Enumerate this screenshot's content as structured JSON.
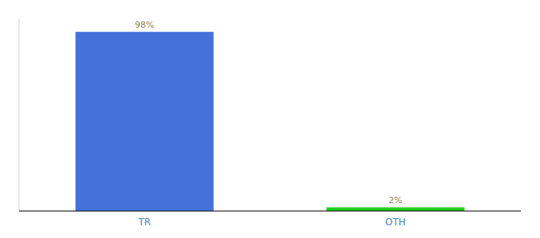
{
  "chart_data": {
    "type": "bar",
    "categories": [
      "TR",
      "OTH"
    ],
    "values": [
      98,
      2
    ],
    "value_labels": [
      "98%",
      "2%"
    ],
    "colors": [
      "#4472db",
      "#22cc22"
    ],
    "ylim": [
      0,
      105
    ],
    "data_labels": true,
    "tick_labels": "x",
    "grid": false
  }
}
